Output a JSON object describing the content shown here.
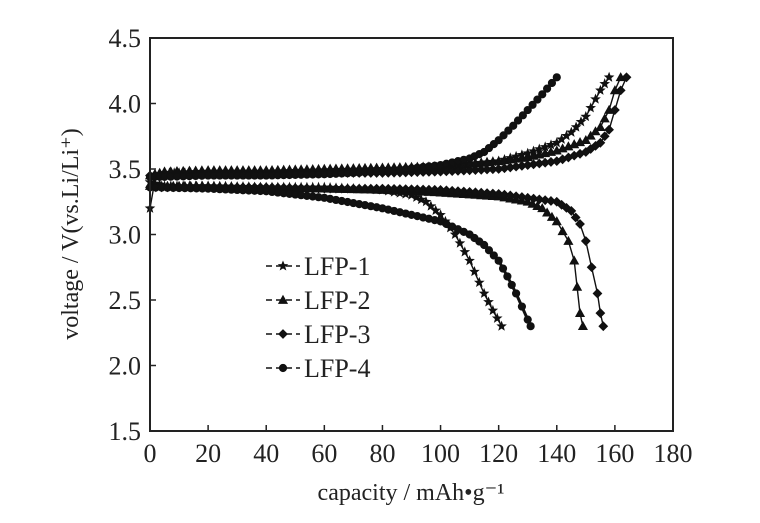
{
  "chart_data": {
    "type": "line",
    "title": "",
    "xlabel": "capacity / mAh•g⁻¹",
    "ylabel": "voltage / V(vs.Li/Li⁺)",
    "xlim": [
      0,
      180
    ],
    "ylim": [
      1.5,
      4.5
    ],
    "x_ticks": [
      "0",
      "20",
      "40",
      "60",
      "80",
      "100",
      "120",
      "140",
      "160",
      "180"
    ],
    "y_ticks": [
      "1.5",
      "2.0",
      "2.5",
      "3.0",
      "3.5",
      "4.0",
      "4.5"
    ],
    "grid": false,
    "legend_position": "center-left",
    "series": [
      {
        "name": "LFP-1",
        "marker": "star",
        "charge": {
          "x": [
            0,
            2,
            5,
            10,
            20,
            40,
            60,
            80,
            100,
            120,
            130,
            140,
            145,
            150,
            155,
            158
          ],
          "y": [
            3.2,
            3.45,
            3.47,
            3.47,
            3.47,
            3.47,
            3.48,
            3.49,
            3.52,
            3.56,
            3.62,
            3.7,
            3.78,
            3.9,
            4.1,
            4.2
          ]
        },
        "discharge": {
          "x": [
            0,
            5,
            20,
            40,
            60,
            70,
            80,
            90,
            95,
            100,
            105,
            110,
            115,
            118,
            121
          ],
          "y": [
            3.4,
            3.37,
            3.37,
            3.36,
            3.36,
            3.35,
            3.34,
            3.3,
            3.25,
            3.15,
            3.0,
            2.8,
            2.55,
            2.42,
            2.3
          ]
        }
      },
      {
        "name": "LFP-2",
        "marker": "triangle",
        "charge": {
          "x": [
            0,
            5,
            20,
            40,
            60,
            80,
            100,
            120,
            130,
            140,
            150,
            155,
            158,
            160,
            162
          ],
          "y": [
            3.45,
            3.48,
            3.49,
            3.49,
            3.5,
            3.51,
            3.52,
            3.56,
            3.59,
            3.64,
            3.72,
            3.82,
            3.95,
            4.1,
            4.2
          ]
        },
        "discharge": {
          "x": [
            0,
            20,
            40,
            60,
            80,
            100,
            120,
            130,
            135,
            140,
            144,
            146,
            147,
            148,
            149
          ],
          "y": [
            3.37,
            3.37,
            3.36,
            3.35,
            3.34,
            3.32,
            3.29,
            3.25,
            3.2,
            3.1,
            2.95,
            2.8,
            2.6,
            2.4,
            2.3
          ]
        }
      },
      {
        "name": "LFP-3",
        "marker": "diamond",
        "charge": {
          "x": [
            0,
            5,
            20,
            40,
            60,
            80,
            100,
            120,
            140,
            150,
            155,
            158,
            160,
            162,
            164
          ],
          "y": [
            3.45,
            3.46,
            3.46,
            3.46,
            3.47,
            3.47,
            3.48,
            3.5,
            3.56,
            3.63,
            3.7,
            3.8,
            3.95,
            4.1,
            4.2
          ]
        },
        "discharge": {
          "x": [
            0,
            20,
            40,
            60,
            80,
            100,
            120,
            140,
            145,
            148,
            150,
            152,
            154,
            155,
            156
          ],
          "y": [
            3.36,
            3.36,
            3.36,
            3.35,
            3.35,
            3.34,
            3.31,
            3.25,
            3.18,
            3.08,
            2.95,
            2.75,
            2.55,
            2.4,
            2.3
          ]
        }
      },
      {
        "name": "LFP-4",
        "marker": "circle",
        "charge": {
          "x": [
            0,
            5,
            20,
            40,
            60,
            80,
            100,
            110,
            115,
            120,
            125,
            130,
            135,
            140
          ],
          "y": [
            3.44,
            3.44,
            3.45,
            3.45,
            3.46,
            3.48,
            3.53,
            3.58,
            3.63,
            3.72,
            3.83,
            3.95,
            4.07,
            4.2
          ]
        },
        "discharge": {
          "x": [
            0,
            20,
            40,
            60,
            80,
            100,
            110,
            115,
            120,
            123,
            126,
            128,
            130,
            131
          ],
          "y": [
            3.36,
            3.35,
            3.33,
            3.28,
            3.2,
            3.1,
            3.0,
            2.92,
            2.8,
            2.68,
            2.55,
            2.45,
            2.35,
            2.3
          ]
        }
      }
    ]
  }
}
